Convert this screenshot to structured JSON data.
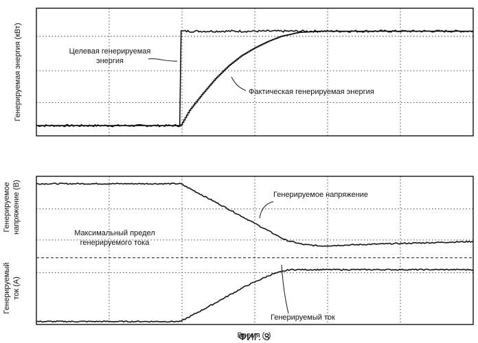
{
  "chart_data": [
    {
      "type": "line",
      "title": "",
      "ylabel": "Генерируемая энергия (кВт)",
      "xlabel": "",
      "grid": true,
      "xlim": [
        0,
        100
      ],
      "ylim": [
        0,
        100
      ],
      "series": [
        {
          "name": "Целевая генерируемая энергия",
          "x": [
            0,
            33,
            33.01,
            100
          ],
          "y": [
            8,
            8,
            82,
            82
          ]
        },
        {
          "name": "Фактическая генерируемая энергия",
          "x": [
            0,
            33,
            35,
            38,
            41,
            44,
            47,
            50,
            53,
            56,
            60,
            65,
            70,
            80,
            90,
            100
          ],
          "y": [
            8,
            8,
            20,
            33,
            45,
            55,
            63,
            69,
            74,
            78,
            81,
            82,
            82,
            82,
            82,
            82
          ]
        }
      ],
      "annotations": [
        {
          "text": "Целевая генерируемая",
          "x": 19,
          "y": 89
        },
        {
          "text": "энергия",
          "x": 19,
          "y": 82
        },
        {
          "text": "Фактическая генерируемая энергия",
          "x": 63,
          "y": 52
        }
      ]
    },
    {
      "type": "line",
      "title": "",
      "ylabel_upper": [
        "Генерируемое",
        "напряжение (В)"
      ],
      "ylabel_lower": [
        "Генерируемый",
        "ток (А)"
      ],
      "xlabel": "Время (с)",
      "grid": true,
      "xlim": [
        0,
        100
      ],
      "ylim": [
        0,
        100
      ],
      "series": [
        {
          "name": "Генерируемое напряжение",
          "x": [
            0,
            33,
            42,
            52,
            57,
            61,
            65,
            75,
            100
          ],
          "y": [
            95,
            95,
            81,
            65,
            57,
            54,
            53,
            54,
            56
          ]
        },
        {
          "name": "Генерируемый ток",
          "x": [
            0,
            33,
            40,
            48,
            54,
            58,
            65,
            80,
            100
          ],
          "y": [
            2,
            2,
            13,
            26,
            34,
            37,
            37,
            37,
            37
          ]
        },
        {
          "name": "Максимальный предел генерируемого тока",
          "x": [
            0,
            100
          ],
          "y": [
            45,
            45
          ]
        }
      ],
      "annotations": [
        {
          "text": "Генерируемое напряжение",
          "x": 69,
          "y": 75
        },
        {
          "text": "Максимальный предел",
          "x": 22,
          "y": 57
        },
        {
          "text": "генерируемого тока",
          "x": 22,
          "y": 50
        },
        {
          "text": "Генерируемый ток",
          "x": 69,
          "y": 5
        }
      ]
    }
  ],
  "figure_caption": "ФИГ. 3"
}
